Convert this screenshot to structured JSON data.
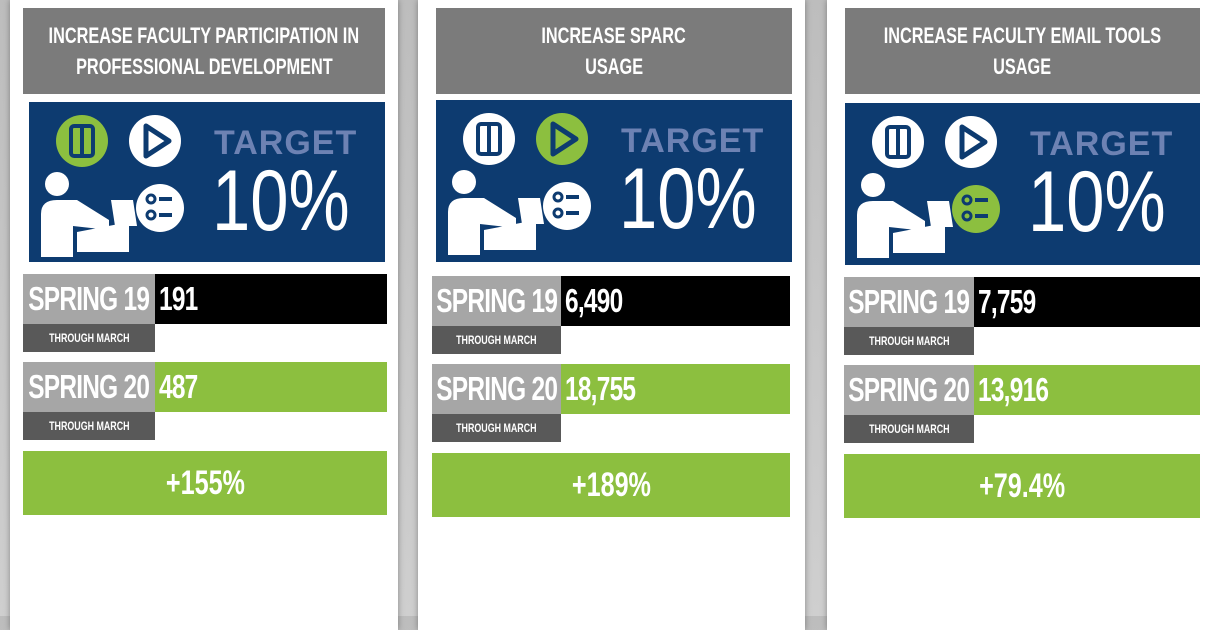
{
  "cards": [
    {
      "title": [
        "INCREASE FACULTY PARTICIPATION IN",
        "PROFESSIONAL DEVELOPMENT"
      ],
      "target_label": "TARGET",
      "target_value": "10%",
      "rows": [
        {
          "label": "SPRING 19",
          "sublabel": "THROUGH MARCH",
          "value": "191"
        },
        {
          "label": "SPRING 20",
          "sublabel": "THROUGH MARCH",
          "value": "487"
        }
      ],
      "change": "+155%"
    },
    {
      "title": [
        "INCREASE SPARC",
        "USAGE"
      ],
      "target_label": "TARGET",
      "target_value": "10%",
      "rows": [
        {
          "label": "SPRING 19",
          "sublabel": "THROUGH MARCH",
          "value": "6,490"
        },
        {
          "label": "SPRING 20",
          "sublabel": "THROUGH MARCH",
          "value": "18,755"
        }
      ],
      "change": "+189%"
    },
    {
      "title": [
        "INCREASE FACULTY EMAIL TOOLS",
        "USAGE"
      ],
      "target_label": "TARGET",
      "target_value": "10%",
      "rows": [
        {
          "label": "SPRING 19",
          "sublabel": "THROUGH MARCH",
          "value": "7,759"
        },
        {
          "label": "SPRING 20",
          "sublabel": "THROUGH MARCH",
          "value": "13,916"
        }
      ],
      "change": "+79.4%"
    }
  ]
}
